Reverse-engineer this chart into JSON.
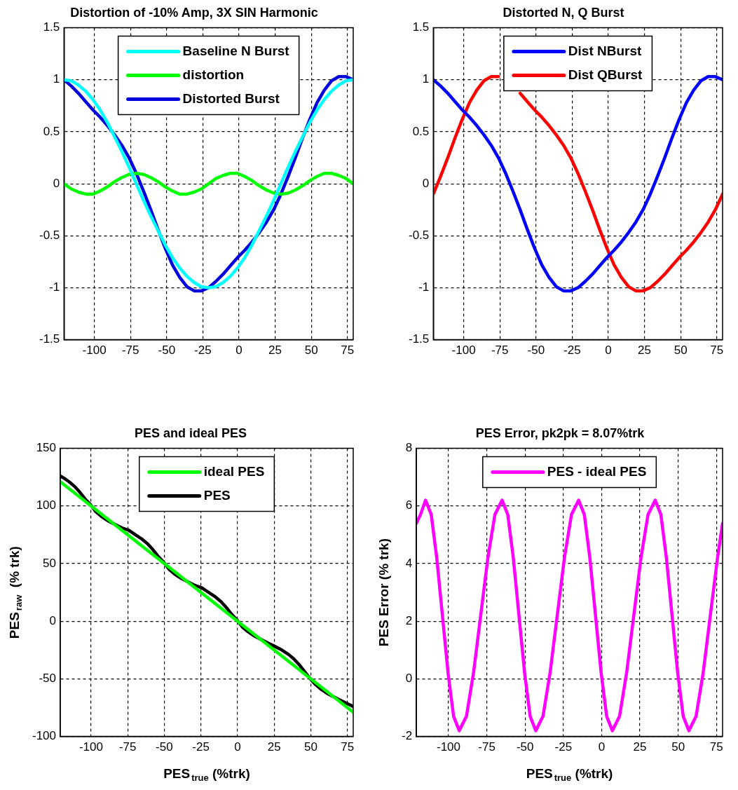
{
  "chart_data": [
    {
      "type": "line",
      "title": "Distortion of -10% Amp, 3X SIN Harmonic",
      "x": [
        -121,
        -116,
        -111,
        -106,
        -101,
        -96,
        -91,
        -86,
        -81,
        -76,
        -71,
        -66,
        -61,
        -56,
        -51,
        -46,
        -41,
        -36,
        -31,
        -26,
        -21,
        -16,
        -11,
        -6,
        -1,
        4,
        9,
        14,
        19,
        24,
        29,
        34,
        39,
        44,
        49,
        54,
        59,
        64,
        69,
        74,
        79
      ],
      "series": [
        {
          "name": "Baseline N Burst",
          "color": "#00ffff",
          "values": [
            1,
            0.99,
            0.95,
            0.89,
            0.81,
            0.71,
            0.59,
            0.45,
            0.31,
            0.16,
            0,
            -0.16,
            -0.31,
            -0.45,
            -0.59,
            -0.71,
            -0.81,
            -0.89,
            -0.95,
            -0.99,
            -1,
            -0.99,
            -0.95,
            -0.89,
            -0.81,
            -0.71,
            -0.59,
            -0.45,
            -0.31,
            -0.16,
            0,
            0.16,
            0.31,
            0.45,
            0.59,
            0.71,
            0.81,
            0.89,
            0.95,
            0.99,
            1
          ]
        },
        {
          "name": "distortion",
          "color": "#00ff00",
          "values": [
            0,
            -0.05,
            -0.08,
            -0.1,
            -0.1,
            -0.07,
            -0.03,
            0.02,
            0.06,
            0.09,
            0.1,
            0.09,
            0.06,
            0.02,
            -0.03,
            -0.07,
            -0.1,
            -0.1,
            -0.08,
            -0.05,
            0,
            0.05,
            0.08,
            0.1,
            0.1,
            0.07,
            0.03,
            -0.02,
            -0.06,
            -0.09,
            -0.1,
            -0.09,
            -0.06,
            -0.02,
            0.03,
            0.07,
            0.1,
            0.1,
            0.08,
            0.05,
            0
          ]
        },
        {
          "name": "Distorted Burst",
          "color": "#0000dd",
          "values": [
            1,
            0.94,
            0.87,
            0.79,
            0.71,
            0.64,
            0.56,
            0.47,
            0.37,
            0.25,
            0.1,
            -0.07,
            -0.25,
            -0.44,
            -0.62,
            -0.78,
            -0.9,
            -0.99,
            -1.03,
            -1.03,
            -1,
            -0.94,
            -0.87,
            -0.79,
            -0.71,
            -0.64,
            -0.56,
            -0.47,
            -0.37,
            -0.25,
            -0.1,
            0.07,
            0.25,
            0.44,
            0.62,
            0.78,
            0.9,
            0.99,
            1.03,
            1.03,
            1
          ]
        }
      ],
      "xlim": [
        -121,
        79
      ],
      "xticks": [
        -100,
        -75,
        -50,
        -25,
        0,
        25,
        50,
        75
      ],
      "ylim": [
        -1.5,
        1.5
      ],
      "yticks": [
        -1.5,
        -1,
        -0.5,
        0,
        0.5,
        1,
        1.5
      ],
      "grid": true,
      "legend": "top",
      "marker": "none"
    },
    {
      "type": "line",
      "title": "Distorted N, Q Burst",
      "x": [
        -121,
        -116,
        -111,
        -106,
        -101,
        -96,
        -91,
        -86,
        -81,
        -76,
        -71,
        -66,
        -61,
        -56,
        -51,
        -46,
        -41,
        -36,
        -31,
        -26,
        -21,
        -16,
        -11,
        -6,
        -1,
        4,
        9,
        14,
        19,
        24,
        29,
        34,
        39,
        44,
        49,
        54,
        59,
        64,
        69,
        74,
        79
      ],
      "series": [
        {
          "name": "Dist NBurst",
          "color": "#0000ff",
          "values": [
            1,
            0.94,
            0.87,
            0.79,
            0.71,
            0.64,
            0.56,
            0.47,
            0.37,
            0.25,
            0.1,
            -0.07,
            -0.25,
            -0.44,
            -0.62,
            -0.78,
            -0.9,
            -0.99,
            -1.03,
            -1.03,
            -1,
            -0.94,
            -0.87,
            -0.79,
            -0.71,
            -0.64,
            -0.56,
            -0.47,
            -0.37,
            -0.25,
            -0.1,
            0.07,
            0.25,
            0.44,
            0.62,
            0.78,
            0.9,
            0.99,
            1.03,
            1.03,
            1
          ]
        },
        {
          "name": "Dist QBurst",
          "color": "#ff0000",
          "values": [
            -0.1,
            0.07,
            0.25,
            0.44,
            0.62,
            0.78,
            0.9,
            0.99,
            1.03,
            1.03,
            null,
            null,
            0.87,
            0.79,
            0.71,
            0.64,
            0.56,
            0.47,
            0.37,
            0.25,
            0.1,
            -0.07,
            -0.25,
            -0.44,
            -0.62,
            -0.78,
            -0.9,
            -0.99,
            -1.03,
            -1.03,
            -1,
            -0.94,
            -0.87,
            -0.79,
            -0.71,
            -0.64,
            -0.56,
            -0.47,
            -0.37,
            -0.25,
            -0.1
          ]
        }
      ],
      "xlim": [
        -121,
        79
      ],
      "xticks": [
        -100,
        -75,
        -50,
        -25,
        0,
        25,
        50,
        75
      ],
      "ylim": [
        -1.5,
        1.5
      ],
      "yticks": [
        -1.5,
        -1,
        -0.5,
        0,
        0.5,
        1,
        1.5
      ],
      "grid": true,
      "legend": "top",
      "marker": "none"
    },
    {
      "type": "line",
      "title": "PES and ideal PES",
      "xlabel": "PES$_{true}$ (%trk)",
      "ylabel": "PES$_{raw}$  (% trk)",
      "series": [
        {
          "name": "ideal PES",
          "color": "#00ff00",
          "x": [
            -121,
            79
          ],
          "values": [
            121,
            -79
          ]
        },
        {
          "name": "PES",
          "color": "#000000",
          "x": [
            -121,
            -118.3,
            -115,
            -111.3,
            -107.7,
            -104,
            -100.3,
            -96.7,
            -93,
            -88.3,
            -83.7,
            -79,
            -74.3,
            -69.7,
            -65,
            -61.3,
            -57.7,
            -54,
            -50.3,
            -46.7,
            -43,
            -38.3,
            -33.7,
            -29,
            -24.3,
            -19.7,
            -15,
            -11.3,
            -7.7,
            -4,
            -0.3,
            3.3,
            7,
            11.7,
            16.3,
            21,
            25.7,
            30.3,
            35,
            38.7,
            42.3,
            46,
            49.7,
            53.3,
            57,
            61.7,
            66.3,
            71,
            75.7,
            79
          ],
          "values": [
            126,
            124,
            121,
            117,
            112,
            106,
            101,
            95,
            91,
            87,
            84,
            81,
            79,
            75,
            71,
            67,
            62,
            56,
            51,
            45,
            41,
            37,
            34,
            31,
            29,
            25,
            21,
            17,
            12,
            6,
            1,
            -5,
            -9,
            -13,
            -16,
            -19,
            -22,
            -25,
            -29,
            -33,
            -38,
            -44,
            -50,
            -55,
            -59,
            -63,
            -66,
            -69,
            -72,
            -74
          ]
        }
      ],
      "xlim": [
        -121,
        79
      ],
      "xticks": [
        -100,
        -75,
        -50,
        -25,
        0,
        25,
        50,
        75
      ],
      "ylim": [
        -100,
        150
      ],
      "yticks": [
        -100,
        -50,
        0,
        50,
        100,
        150
      ],
      "grid": true,
      "legend": "top",
      "marker": "none"
    },
    {
      "type": "line",
      "title": "PES Error, pk2pk = 8.07%trk",
      "xlabel": "PES$_{true}$ (%trk)",
      "ylabel": "PES Error (% trk)",
      "x": [
        -121,
        -118.3,
        -115,
        -111.3,
        -107.7,
        -104,
        -100.3,
        -96.7,
        -93,
        -88.3,
        -83.7,
        -79,
        -74.3,
        -69.7,
        -65,
        -61.3,
        -57.7,
        -54,
        -50.3,
        -46.7,
        -43,
        -38.3,
        -33.7,
        -29,
        -24.3,
        -19.7,
        -15,
        -11.3,
        -7.7,
        -4,
        -0.3,
        3.3,
        7,
        11.7,
        16.3,
        21,
        25.7,
        30.3,
        35,
        38.7,
        42.3,
        46,
        49.7,
        53.3,
        57,
        61.7,
        66.3,
        71,
        75.7,
        79
      ],
      "series": [
        {
          "name": "PES - ideal PES",
          "color": "#ff00ff",
          "values": [
            5.4,
            5.7,
            6.2,
            5.7,
            4.2,
            2.2,
            0.2,
            -1.3,
            -1.8,
            -1.3,
            0.2,
            2.2,
            4.2,
            5.7,
            6.2,
            5.7,
            4.2,
            2.2,
            0.2,
            -1.3,
            -1.8,
            -1.3,
            0.2,
            2.2,
            4.2,
            5.7,
            6.2,
            5.7,
            4.2,
            2.2,
            0.2,
            -1.3,
            -1.8,
            -1.3,
            0.2,
            2.2,
            4.2,
            5.7,
            6.2,
            5.7,
            4.2,
            2.2,
            0.2,
            -1.3,
            -1.8,
            -1.3,
            0.2,
            2.2,
            4.2,
            5.4
          ]
        }
      ],
      "xlim": [
        -121,
        79
      ],
      "xticks": [
        -100,
        -75,
        -50,
        -25,
        0,
        25,
        50,
        75
      ],
      "ylim": [
        -2,
        8
      ],
      "yticks": [
        -2,
        0,
        2,
        4,
        6,
        8
      ],
      "grid": true,
      "legend": "top",
      "marker": "none"
    }
  ]
}
